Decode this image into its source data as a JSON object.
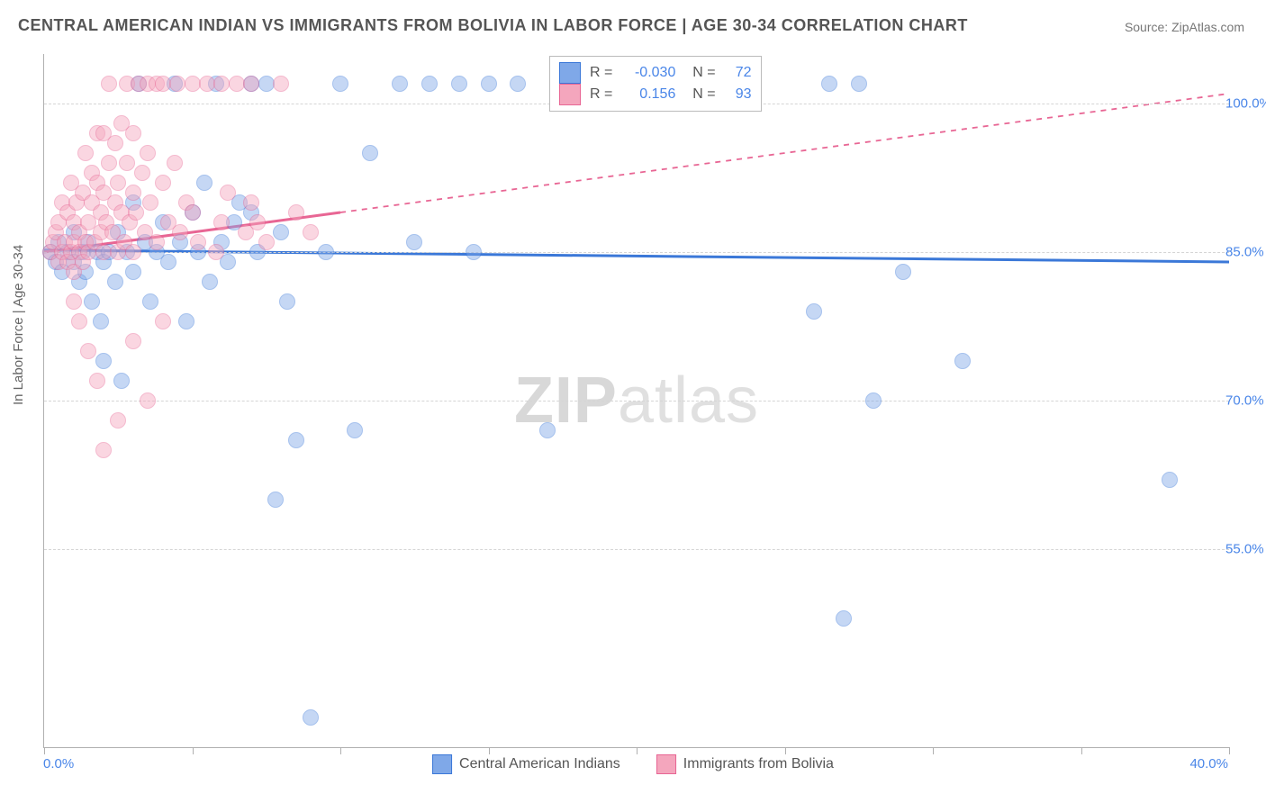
{
  "title": "CENTRAL AMERICAN INDIAN VS IMMIGRANTS FROM BOLIVIA IN LABOR FORCE | AGE 30-34 CORRELATION CHART",
  "source": "Source: ZipAtlas.com",
  "watermark_a": "ZIP",
  "watermark_b": "atlas",
  "y_axis_title": "In Labor Force | Age 30-34",
  "chart": {
    "type": "scatter",
    "background_color": "#ffffff",
    "grid_color": "#d5d5d5",
    "xlim": [
      0,
      40
    ],
    "ylim": [
      35,
      105
    ],
    "x_ticks": [
      0,
      5,
      10,
      15,
      20,
      25,
      30,
      35,
      40
    ],
    "x_tick_labels": {
      "min": "0.0%",
      "max": "40.0%"
    },
    "y_gridlines": [
      55,
      70,
      85,
      100
    ],
    "y_tick_labels": [
      "55.0%",
      "70.0%",
      "85.0%",
      "100.0%"
    ],
    "label_fontsize": 15,
    "label_color": "#4a86e8",
    "title_fontsize": 18,
    "marker_radius": 8,
    "marker_opacity": 0.45,
    "series": [
      {
        "name": "Central American Indians",
        "fill": "#7fa8e8",
        "stroke": "#3b78d8",
        "r_value": "-0.030",
        "n_value": "72",
        "trend": {
          "x1": 0,
          "y1": 85.2,
          "x2": 40,
          "y2": 84.0,
          "dashed_from_x": null,
          "width": 3
        },
        "points": [
          [
            0.2,
            85
          ],
          [
            0.4,
            84
          ],
          [
            0.5,
            86
          ],
          [
            0.6,
            83
          ],
          [
            0.8,
            85
          ],
          [
            1.0,
            84
          ],
          [
            1.0,
            87
          ],
          [
            1.2,
            82
          ],
          [
            1.3,
            85
          ],
          [
            1.4,
            83
          ],
          [
            1.5,
            86
          ],
          [
            1.6,
            80
          ],
          [
            1.8,
            85
          ],
          [
            1.9,
            78
          ],
          [
            2.0,
            84
          ],
          [
            2.0,
            74
          ],
          [
            2.2,
            85
          ],
          [
            2.4,
            82
          ],
          [
            2.5,
            87
          ],
          [
            2.6,
            72
          ],
          [
            2.8,
            85
          ],
          [
            3.0,
            83
          ],
          [
            3.0,
            90
          ],
          [
            3.2,
            102
          ],
          [
            3.4,
            86
          ],
          [
            3.6,
            80
          ],
          [
            3.8,
            85
          ],
          [
            4.0,
            88
          ],
          [
            4.2,
            84
          ],
          [
            4.4,
            102
          ],
          [
            4.6,
            86
          ],
          [
            4.8,
            78
          ],
          [
            5.0,
            89
          ],
          [
            5.2,
            85
          ],
          [
            5.4,
            92
          ],
          [
            5.6,
            82
          ],
          [
            5.8,
            102
          ],
          [
            6.0,
            86
          ],
          [
            6.2,
            84
          ],
          [
            6.4,
            88
          ],
          [
            6.6,
            90
          ],
          [
            7.0,
            102
          ],
          [
            7.0,
            89
          ],
          [
            7.2,
            85
          ],
          [
            7.5,
            102
          ],
          [
            7.8,
            60
          ],
          [
            8.0,
            87
          ],
          [
            8.2,
            80
          ],
          [
            8.5,
            66
          ],
          [
            9.0,
            38
          ],
          [
            9.5,
            85
          ],
          [
            10.0,
            102
          ],
          [
            10.5,
            67
          ],
          [
            11.0,
            95
          ],
          [
            12.0,
            102
          ],
          [
            12.5,
            86
          ],
          [
            13.0,
            102
          ],
          [
            14.0,
            102
          ],
          [
            14.5,
            85
          ],
          [
            15.0,
            102
          ],
          [
            16.0,
            102
          ],
          [
            17.0,
            67
          ],
          [
            20.0,
            102
          ],
          [
            21.0,
            102
          ],
          [
            26.0,
            79
          ],
          [
            27.0,
            48
          ],
          [
            28.0,
            70
          ],
          [
            29.0,
            83
          ],
          [
            31.0,
            74
          ],
          [
            38.0,
            62
          ],
          [
            26.5,
            102
          ],
          [
            27.5,
            102
          ]
        ]
      },
      {
        "name": "Immigrants from Bolivia",
        "fill": "#f4a6bd",
        "stroke": "#e86694",
        "r_value": "0.156",
        "n_value": "93",
        "trend": {
          "x1": 0,
          "y1": 85.0,
          "x2": 40,
          "y2": 101.0,
          "dashed_from_x": 10,
          "width": 3
        },
        "points": [
          [
            0.2,
            85
          ],
          [
            0.3,
            86
          ],
          [
            0.4,
            87
          ],
          [
            0.5,
            84
          ],
          [
            0.5,
            88
          ],
          [
            0.6,
            85
          ],
          [
            0.6,
            90
          ],
          [
            0.7,
            86
          ],
          [
            0.8,
            84
          ],
          [
            0.8,
            89
          ],
          [
            0.9,
            85
          ],
          [
            0.9,
            92
          ],
          [
            1.0,
            86
          ],
          [
            1.0,
            88
          ],
          [
            1.0,
            83
          ],
          [
            1.1,
            90
          ],
          [
            1.2,
            87
          ],
          [
            1.2,
            85
          ],
          [
            1.3,
            84
          ],
          [
            1.3,
            91
          ],
          [
            1.4,
            86
          ],
          [
            1.4,
            95
          ],
          [
            1.5,
            88
          ],
          [
            1.5,
            85
          ],
          [
            1.6,
            90
          ],
          [
            1.6,
            93
          ],
          [
            1.7,
            86
          ],
          [
            1.8,
            92
          ],
          [
            1.8,
            97
          ],
          [
            1.9,
            87
          ],
          [
            1.9,
            89
          ],
          [
            2.0,
            91
          ],
          [
            2.0,
            85
          ],
          [
            2.0,
            97
          ],
          [
            2.1,
            88
          ],
          [
            2.2,
            94
          ],
          [
            2.2,
            102
          ],
          [
            2.3,
            87
          ],
          [
            2.4,
            90
          ],
          [
            2.4,
            96
          ],
          [
            2.5,
            85
          ],
          [
            2.5,
            92
          ],
          [
            2.6,
            89
          ],
          [
            2.6,
            98
          ],
          [
            2.7,
            86
          ],
          [
            2.8,
            94
          ],
          [
            2.8,
            102
          ],
          [
            2.9,
            88
          ],
          [
            3.0,
            91
          ],
          [
            3.0,
            85
          ],
          [
            3.0,
            97
          ],
          [
            3.1,
            89
          ],
          [
            3.2,
            102
          ],
          [
            3.3,
            93
          ],
          [
            3.4,
            87
          ],
          [
            3.5,
            95
          ],
          [
            3.5,
            102
          ],
          [
            3.6,
            90
          ],
          [
            3.8,
            102
          ],
          [
            3.8,
            86
          ],
          [
            4.0,
            92
          ],
          [
            4.0,
            102
          ],
          [
            4.2,
            88
          ],
          [
            4.4,
            94
          ],
          [
            4.5,
            102
          ],
          [
            4.6,
            87
          ],
          [
            4.8,
            90
          ],
          [
            5.0,
            102
          ],
          [
            5.0,
            89
          ],
          [
            5.2,
            86
          ],
          [
            5.5,
            102
          ],
          [
            5.8,
            85
          ],
          [
            6.0,
            88
          ],
          [
            6.0,
            102
          ],
          [
            6.2,
            91
          ],
          [
            6.5,
            102
          ],
          [
            6.8,
            87
          ],
          [
            7.0,
            102
          ],
          [
            7.0,
            90
          ],
          [
            7.2,
            88
          ],
          [
            7.5,
            86
          ],
          [
            8.0,
            102
          ],
          [
            8.5,
            89
          ],
          [
            9.0,
            87
          ],
          [
            1.0,
            80
          ],
          [
            1.2,
            78
          ],
          [
            1.5,
            75
          ],
          [
            1.8,
            72
          ],
          [
            2.0,
            65
          ],
          [
            2.5,
            68
          ],
          [
            3.0,
            76
          ],
          [
            3.5,
            70
          ],
          [
            4.0,
            78
          ]
        ]
      }
    ]
  },
  "legend": {
    "items": [
      {
        "label": "Central American Indians",
        "fill": "#7fa8e8",
        "stroke": "#3b78d8"
      },
      {
        "label": "Immigrants from Bolivia",
        "fill": "#f4a6bd",
        "stroke": "#e86694"
      }
    ]
  },
  "statbox": {
    "rows": [
      {
        "fill": "#7fa8e8",
        "stroke": "#3b78d8",
        "r_lbl": "R =",
        "r_val": "-0.030",
        "n_lbl": "N =",
        "n_val": "72"
      },
      {
        "fill": "#f4a6bd",
        "stroke": "#e86694",
        "r_lbl": "R =",
        "r_val": "0.156",
        "n_lbl": "N =",
        "n_val": "93"
      }
    ]
  }
}
